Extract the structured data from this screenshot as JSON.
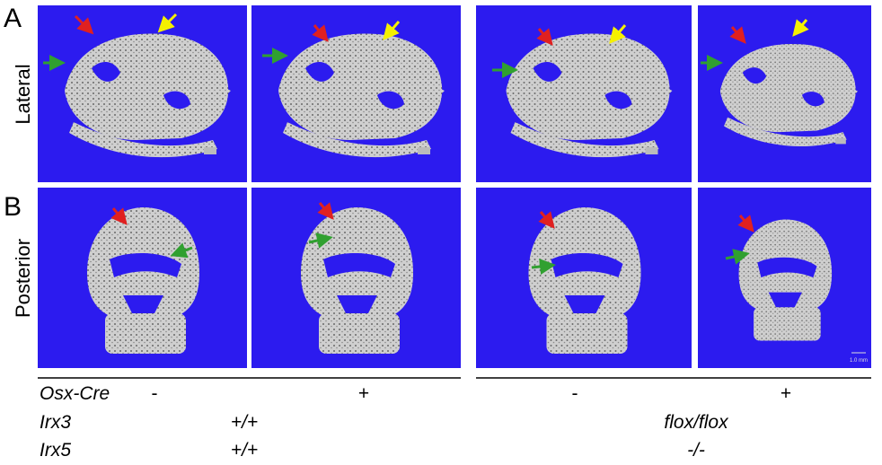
{
  "panels": {
    "A": "A",
    "B": "B"
  },
  "rows": {
    "lateral": "Lateral",
    "posterior": "Posterior"
  },
  "scale_bar": "1.0 mm",
  "genotype": {
    "osx_cre": {
      "label": "Osx-Cre",
      "values": [
        "-",
        "+",
        "-",
        "+"
      ]
    },
    "irx3": {
      "label": "Irx3",
      "values": [
        "+/+",
        "flox/flox"
      ]
    },
    "irx5": {
      "label": "Irx5",
      "values": [
        "+/+",
        "-/-"
      ]
    }
  }
}
